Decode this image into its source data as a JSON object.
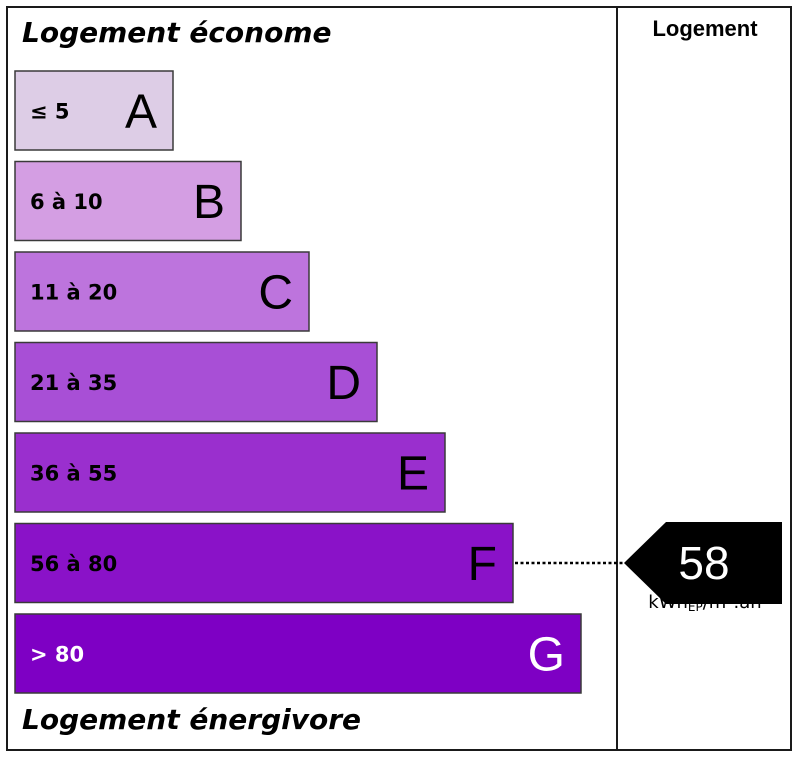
{
  "header": {
    "top_label": "Logement économe",
    "bottom_label": "Logement énergivore",
    "column_label": "Logement"
  },
  "chart_data": {
    "type": "bar",
    "categories": [
      "A",
      "B",
      "C",
      "D",
      "E",
      "F",
      "G"
    ],
    "ranges": [
      "≤ 5",
      "6 à 10",
      "11 à 20",
      "21 à 35",
      "36 à 55",
      "56 à 80",
      "> 80"
    ],
    "colors": [
      "#ddcde6",
      "#d49ee3",
      "#bd74dd",
      "#a84fd6",
      "#9a2fce",
      "#8a12c8",
      "#7e00c4"
    ],
    "range_text_colors": [
      "#000000",
      "#000000",
      "#000000",
      "#000000",
      "#000000",
      "#000000",
      "#ffffff"
    ],
    "letter_text_colors": [
      "#000000",
      "#000000",
      "#000000",
      "#000000",
      "#000000",
      "#000000",
      "#ffffff"
    ],
    "value": 58,
    "value_class": "F"
  },
  "unit": {
    "base": "kWh",
    "subscript": "EP",
    "suffix": "/m².an"
  }
}
